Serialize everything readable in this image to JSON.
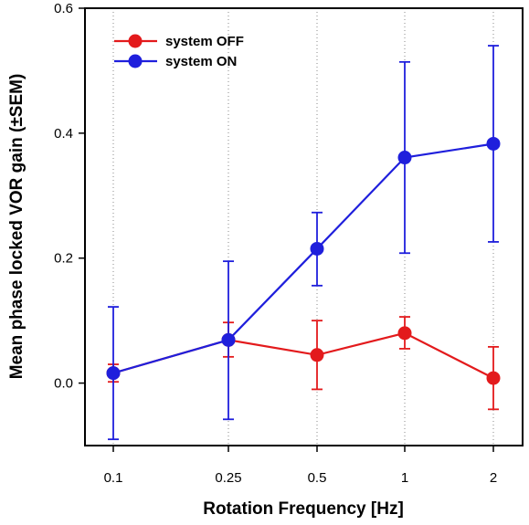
{
  "chart_data": {
    "type": "line",
    "xlabel": "Rotation Frequency [Hz]",
    "ylabel": "Mean phase locked VOR gain (±SEM)",
    "categories": [
      "0.1",
      "0.25",
      "0.5",
      "1",
      "2"
    ],
    "ylim": [
      -0.1,
      0.6
    ],
    "yticks": [
      "0.0",
      "0.2",
      "0.4",
      "0.6"
    ],
    "ytick_values": [
      0.0,
      0.2,
      0.4,
      0.6
    ],
    "grid": "vertical dotted at each x category",
    "legend_position": "top-left",
    "series": [
      {
        "name": "system OFF",
        "color": "#e31a1c",
        "values": [
          0.016,
          0.069,
          0.045,
          0.08,
          0.008
        ],
        "err_low": [
          0.002,
          0.042,
          -0.01,
          0.055,
          -0.042
        ],
        "err_high": [
          0.03,
          0.097,
          0.1,
          0.106,
          0.058
        ]
      },
      {
        "name": "system ON",
        "color": "#1f1fdc",
        "values": [
          0.016,
          0.069,
          0.215,
          0.361,
          0.383
        ],
        "err_low": [
          -0.09,
          -0.058,
          0.156,
          0.208,
          0.226
        ],
        "err_high": [
          0.122,
          0.195,
          0.273,
          0.514,
          0.54
        ]
      }
    ]
  }
}
